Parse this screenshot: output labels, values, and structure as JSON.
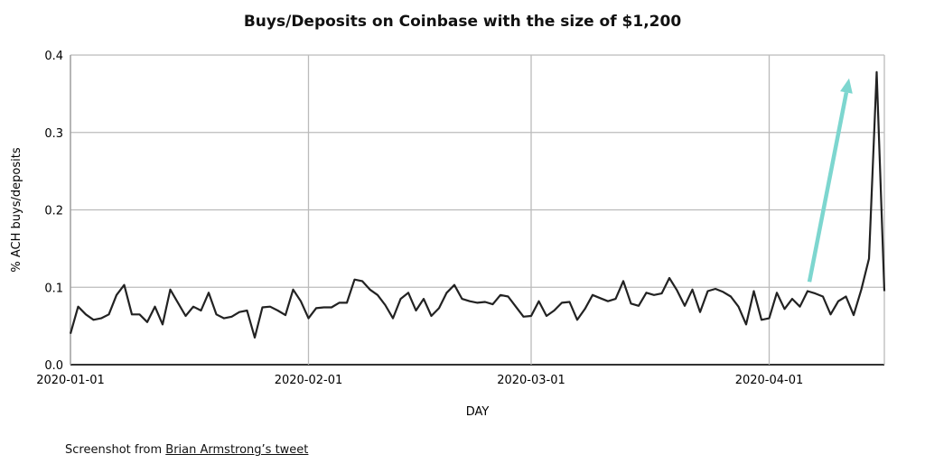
{
  "chart_data": {
    "type": "line",
    "title": "Buys/Deposits on Coinbase with the size of $1,200",
    "xlabel": "DAY",
    "ylabel": "% ACH buys/deposits",
    "x_start": "2020-01-01",
    "x_end": "2020-04-16",
    "x_ticks": [
      "2020-01-01",
      "2020-02-01",
      "2020-03-01",
      "2020-04-01"
    ],
    "ylim": [
      0,
      0.4
    ],
    "y_ticks": [
      "0.0",
      "0.1",
      "0.2",
      "0.3",
      "0.4"
    ],
    "grid": true,
    "line_color": "#222222",
    "values": [
      0.04,
      0.075,
      0.065,
      0.058,
      0.06,
      0.065,
      0.09,
      0.103,
      0.065,
      0.065,
      0.055,
      0.075,
      0.052,
      0.097,
      0.08,
      0.063,
      0.075,
      0.07,
      0.093,
      0.065,
      0.06,
      0.062,
      0.068,
      0.07,
      0.035,
      0.074,
      0.075,
      0.07,
      0.064,
      0.097,
      0.082,
      0.06,
      0.073,
      0.074,
      0.074,
      0.08,
      0.08,
      0.11,
      0.108,
      0.097,
      0.09,
      0.077,
      0.06,
      0.085,
      0.093,
      0.07,
      0.085,
      0.063,
      0.073,
      0.093,
      0.103,
      0.085,
      0.082,
      0.08,
      0.081,
      0.078,
      0.09,
      0.088,
      0.075,
      0.062,
      0.063,
      0.082,
      0.063,
      0.07,
      0.08,
      0.081,
      0.058,
      0.072,
      0.09,
      0.086,
      0.082,
      0.085,
      0.108,
      0.079,
      0.076,
      0.093,
      0.09,
      0.092,
      0.112,
      0.096,
      0.076,
      0.097,
      0.068,
      0.095,
      0.098,
      0.094,
      0.088,
      0.075,
      0.052,
      0.095,
      0.058,
      0.06,
      0.093,
      0.072,
      0.085,
      0.075,
      0.095,
      0.092,
      0.088,
      0.065,
      0.082,
      0.088,
      0.064,
      0.097,
      0.137,
      0.378,
      0.095
    ],
    "annotation_arrow": {
      "color": "#7dd6cf",
      "from": {
        "x": "2020-04-06",
        "y": 0.107
      },
      "to": {
        "x": "2020-04-12",
        "y": 0.37
      }
    }
  },
  "caption": {
    "prefix": "Screenshot from ",
    "link": "Brian Armstrong’s tweet"
  }
}
